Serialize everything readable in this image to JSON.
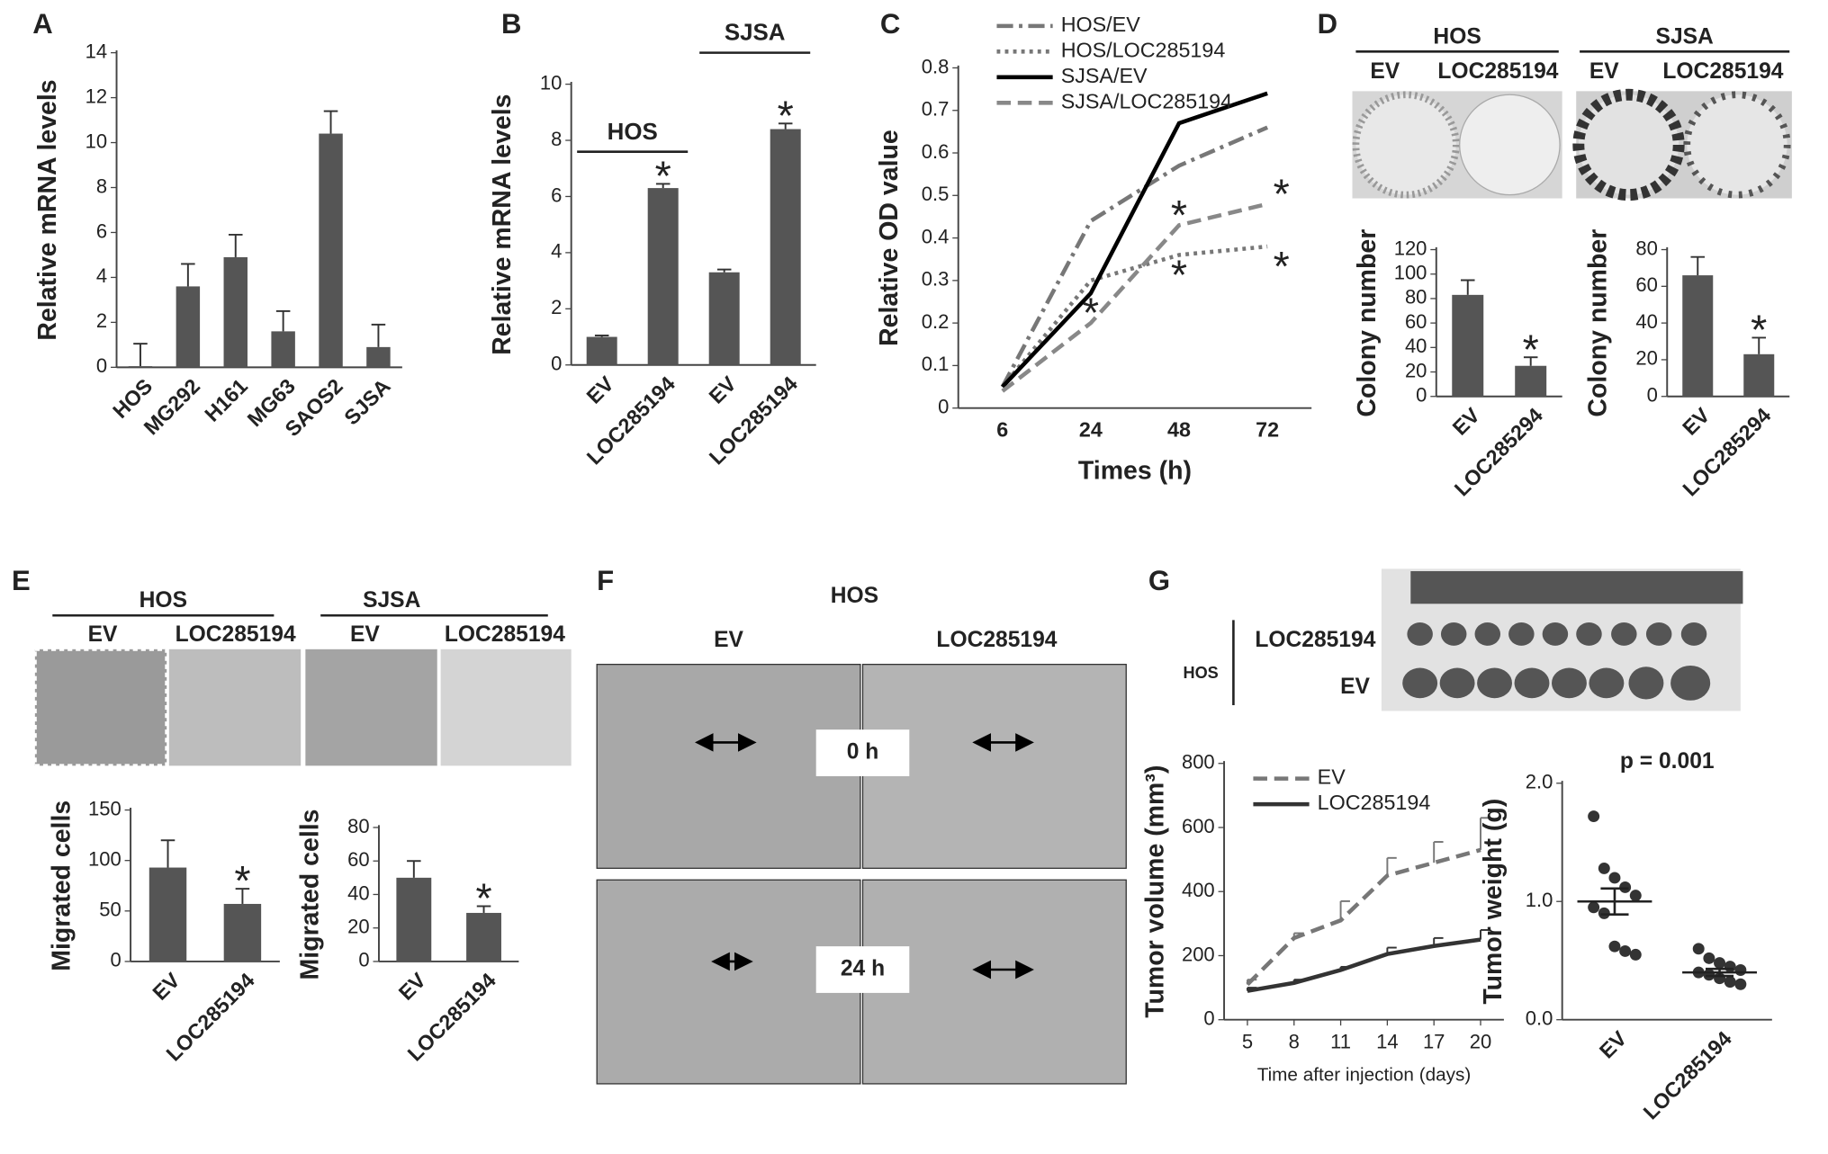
{
  "panel_letters": [
    "A",
    "B",
    "C",
    "D",
    "E",
    "F",
    "G"
  ],
  "panel_D_images": {
    "groups": [
      {
        "title": "HOS",
        "labels": [
          "EV",
          "LOC285194"
        ]
      },
      {
        "title": "SJSA",
        "labels": [
          "EV",
          "LOC285194"
        ]
      }
    ]
  },
  "panel_E_images": {
    "groups": [
      {
        "title": "HOS",
        "labels": [
          "EV",
          "LOC285194"
        ]
      },
      {
        "title": "SJSA",
        "labels": [
          "EV",
          "LOC285194"
        ]
      }
    ]
  },
  "panel_F_images": {
    "title": "HOS",
    "labels": [
      "EV",
      "LOC285194"
    ],
    "times": [
      "0 h",
      "24 h"
    ]
  },
  "panel_G_image": {
    "group": "HOS",
    "rows": [
      "LOC285194",
      "EV"
    ]
  },
  "chart_data": [
    {
      "type": "bar",
      "ylabel": "Relative mRNA levels",
      "categories": [
        "HOS",
        "MG292",
        "H161",
        "MG63",
        "SAOS2",
        "SJSA"
      ],
      "values": [
        0.05,
        3.6,
        4.9,
        1.6,
        10.4,
        0.9
      ],
      "errors": [
        1.0,
        1.0,
        1.0,
        0.9,
        1.0,
        1.0
      ],
      "color": "#555555",
      "ylim": [
        0,
        14
      ],
      "yticks": [
        0,
        2,
        4,
        6,
        8,
        10,
        12,
        14
      ]
    },
    {
      "type": "bar",
      "ylabel": "Relative mRNA levels",
      "categories": [
        "EV",
        "LOC285194",
        "EV",
        "LOC285194"
      ],
      "values": [
        1.0,
        6.3,
        3.3,
        8.4
      ],
      "errors": [
        0.05,
        0.15,
        0.1,
        0.2
      ],
      "color": "#555555",
      "ylim": [
        0,
        10
      ],
      "yticks": [
        0,
        2,
        4,
        6,
        8,
        10
      ],
      "groups": [
        "HOS",
        "SJSA"
      ],
      "annotations": [
        {
          "index": 1,
          "text": "*"
        },
        {
          "index": 3,
          "text": "*"
        }
      ]
    },
    {
      "type": "line",
      "ylabel": "Relative OD value",
      "xlabel": "Times (h)",
      "categories": [
        "6",
        "24",
        "48",
        "72"
      ],
      "legend": "upper left",
      "series": [
        {
          "name": "HOS/EV",
          "color": "#777777",
          "dash": "dashdot",
          "values": [
            0.05,
            0.44,
            0.57,
            0.66
          ]
        },
        {
          "name": "HOS/LOC285194",
          "color": "#777777",
          "dash": "dotted",
          "values": [
            0.05,
            0.3,
            0.36,
            0.38
          ]
        },
        {
          "name": "SJSA/EV",
          "color": "#000000",
          "dash": "solid",
          "values": [
            0.05,
            0.27,
            0.67,
            0.74
          ]
        },
        {
          "name": "SJSA/LOC285194",
          "color": "#888888",
          "dash": "dashed",
          "values": [
            0.04,
            0.2,
            0.43,
            0.48
          ]
        }
      ],
      "ylim": [
        0,
        0.8
      ],
      "yticks": [
        0,
        0.1,
        0.2,
        0.3,
        0.4,
        0.5,
        0.6,
        0.7,
        0.8
      ],
      "annotations": [
        {
          "series": 3,
          "index": 1,
          "text": "*"
        },
        {
          "series": 3,
          "index": 2,
          "text": "*"
        },
        {
          "series": 1,
          "index": 2,
          "text": "*"
        },
        {
          "series": 3,
          "index": 3,
          "text": "*"
        },
        {
          "series": 1,
          "index": 3,
          "text": "*"
        }
      ]
    },
    {
      "type": "bar",
      "ylabel": "Colony number",
      "categories": [
        "EV",
        "LOC285294"
      ],
      "values": [
        83,
        25
      ],
      "errors": [
        12,
        7
      ],
      "color": "#555555",
      "ylim": [
        0,
        120
      ],
      "yticks": [
        0,
        20,
        40,
        60,
        80,
        100,
        120
      ],
      "annotations": [
        {
          "index": 1,
          "text": "*"
        }
      ]
    },
    {
      "type": "bar",
      "ylabel": "Colony number",
      "categories": [
        "EV",
        "LOC285294"
      ],
      "values": [
        66,
        23
      ],
      "errors": [
        10,
        9
      ],
      "color": "#555555",
      "ylim": [
        0,
        80
      ],
      "yticks": [
        0,
        20,
        40,
        60,
        80
      ],
      "annotations": [
        {
          "index": 1,
          "text": "*"
        }
      ]
    },
    {
      "type": "bar",
      "ylabel": "Migrated cells",
      "categories": [
        "EV",
        "LOC285194"
      ],
      "values": [
        93,
        57
      ],
      "errors": [
        27,
        15
      ],
      "color": "#555555",
      "ylim": [
        0,
        150
      ],
      "yticks": [
        0,
        50,
        100,
        150
      ],
      "annotations": [
        {
          "index": 1,
          "text": "*"
        }
      ]
    },
    {
      "type": "bar",
      "ylabel": "Migrated cells",
      "categories": [
        "EV",
        "LOC285194"
      ],
      "values": [
        50,
        29
      ],
      "errors": [
        10,
        4
      ],
      "color": "#555555",
      "ylim": [
        0,
        80
      ],
      "yticks": [
        0,
        20,
        40,
        60,
        80
      ],
      "annotations": [
        {
          "index": 1,
          "text": "*"
        }
      ]
    },
    {
      "type": "line",
      "ylabel": "Tumor volume (mm³)",
      "xlabel": "Time after injection (days)",
      "x": [
        5,
        8,
        11,
        14,
        17,
        20
      ],
      "legend": "upper left",
      "series": [
        {
          "name": "EV",
          "color": "#777777",
          "dash": "dashed",
          "values": [
            110,
            255,
            310,
            450,
            490,
            530
          ],
          "errors": [
            15,
            15,
            60,
            55,
            65,
            100
          ]
        },
        {
          "name": "LOC285194",
          "color": "#333333",
          "dash": "solid",
          "values": [
            90,
            115,
            155,
            205,
            230,
            250
          ],
          "errors": [
            10,
            10,
            10,
            20,
            25,
            30
          ]
        }
      ],
      "xlim": [
        3.5,
        21.5
      ],
      "xticks": [
        5,
        8,
        11,
        14,
        17,
        20
      ],
      "ylim": [
        0,
        800
      ],
      "yticks": [
        0,
        200,
        400,
        600,
        800
      ]
    },
    {
      "type": "dot",
      "ylabel": "Tumor weight (g)",
      "annotation": "p = 0.001",
      "categories": [
        "EV",
        "LOC285194"
      ],
      "points": [
        [
          1.72,
          1.28,
          1.2,
          1.12,
          1.05,
          0.95,
          0.9,
          0.62,
          0.58,
          0.55
        ],
        [
          0.6,
          0.52,
          0.48,
          0.45,
          0.42,
          0.4,
          0.38,
          0.35,
          0.32,
          0.3
        ]
      ],
      "means": [
        1.0,
        0.4
      ],
      "errors": [
        0.11,
        0.03
      ],
      "color": "#333333",
      "ylim": [
        0,
        2
      ],
      "yticks": [
        {
          "value": 0,
          "label": "0.0"
        },
        {
          "value": 1,
          "label": "1.0"
        },
        {
          "value": 2,
          "label": "2.0"
        }
      ]
    }
  ]
}
